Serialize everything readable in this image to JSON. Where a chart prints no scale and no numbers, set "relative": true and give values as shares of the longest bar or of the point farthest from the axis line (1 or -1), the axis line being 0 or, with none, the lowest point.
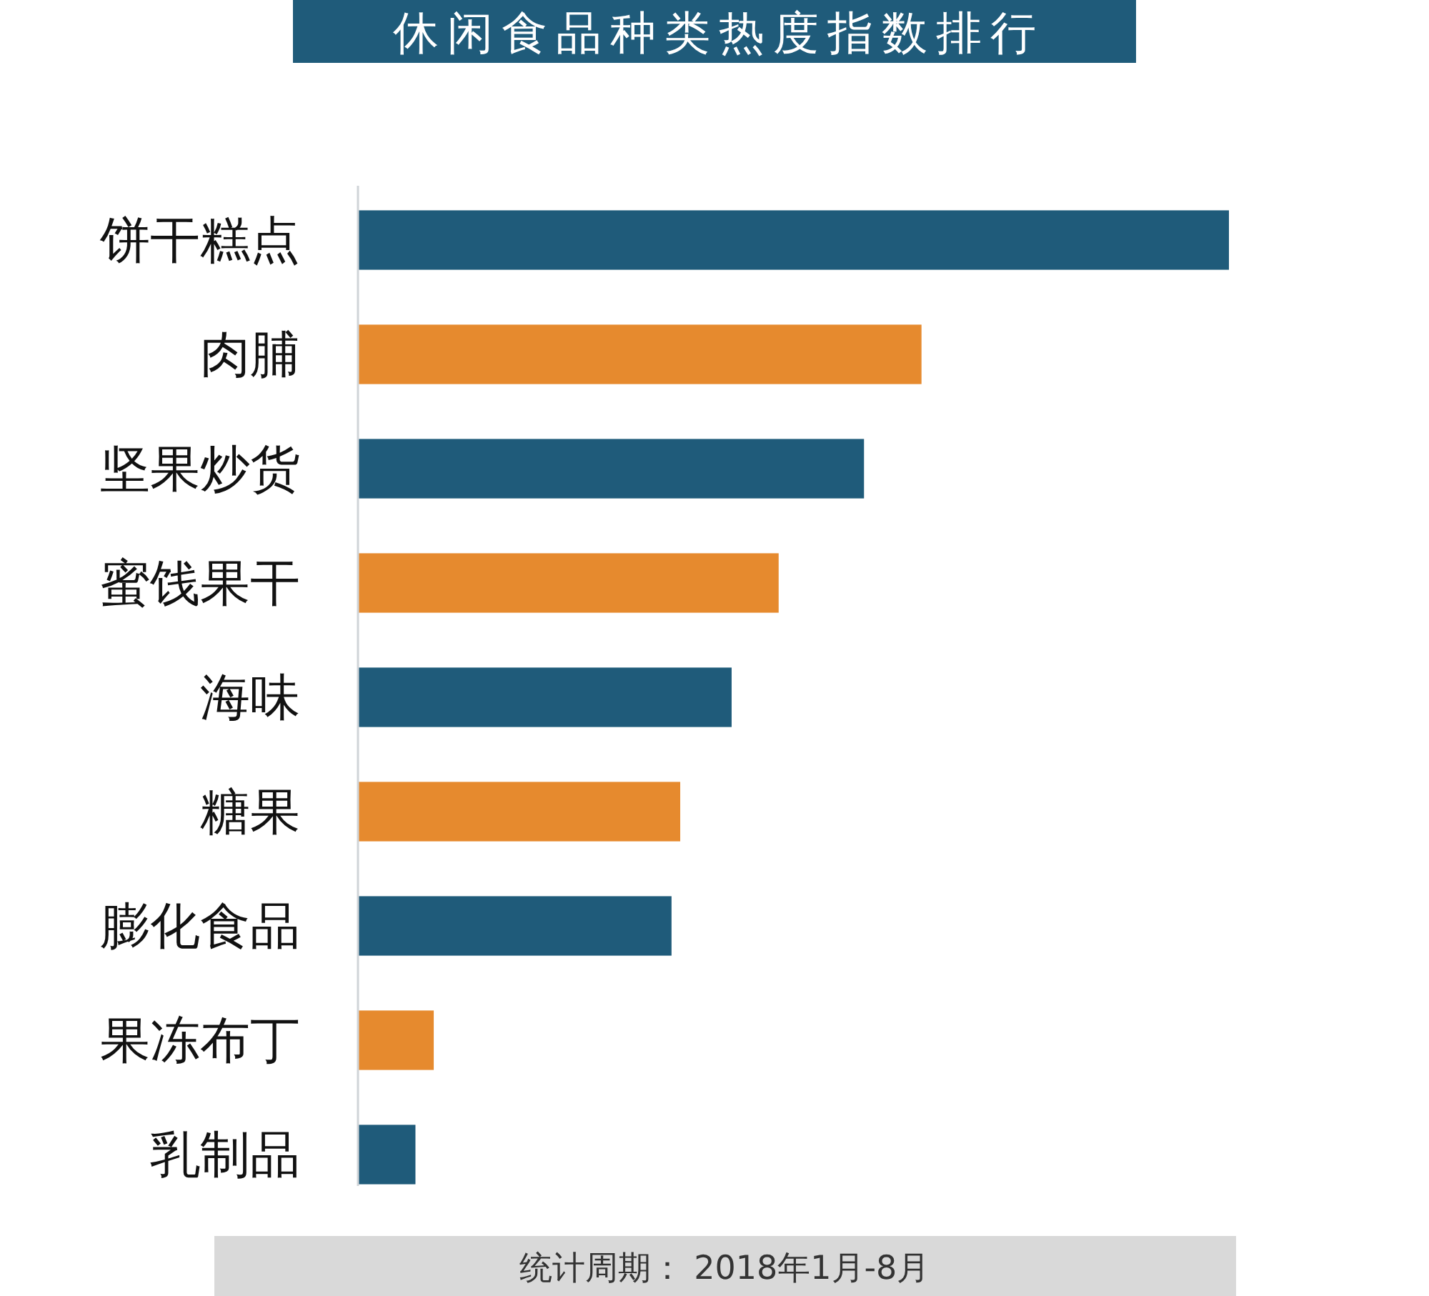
{
  "chart_data": {
    "type": "bar",
    "orientation": "horizontal",
    "relative": true,
    "title": "休闲食品种类热度指数排行",
    "categories": [
      "饼干糕点",
      "肉脯",
      "坚果炒货",
      "蜜饯果干",
      "海味",
      "糖果",
      "膨化食品",
      "果冻布丁",
      "乳制品"
    ],
    "values": [
      1,
      0.647,
      0.581,
      0.483,
      0.429,
      0.37,
      0.36,
      0.087,
      0.066
    ],
    "colors": [
      "#1f5b7a",
      "#e68a2e",
      "#1f5b7a",
      "#e68a2e",
      "#1f5b7a",
      "#e68a2e",
      "#1f5b7a",
      "#e68a2e",
      "#1f5b7a"
    ],
    "annotations": [
      "统计周期： 2018年1月-8月"
    ]
  }
}
